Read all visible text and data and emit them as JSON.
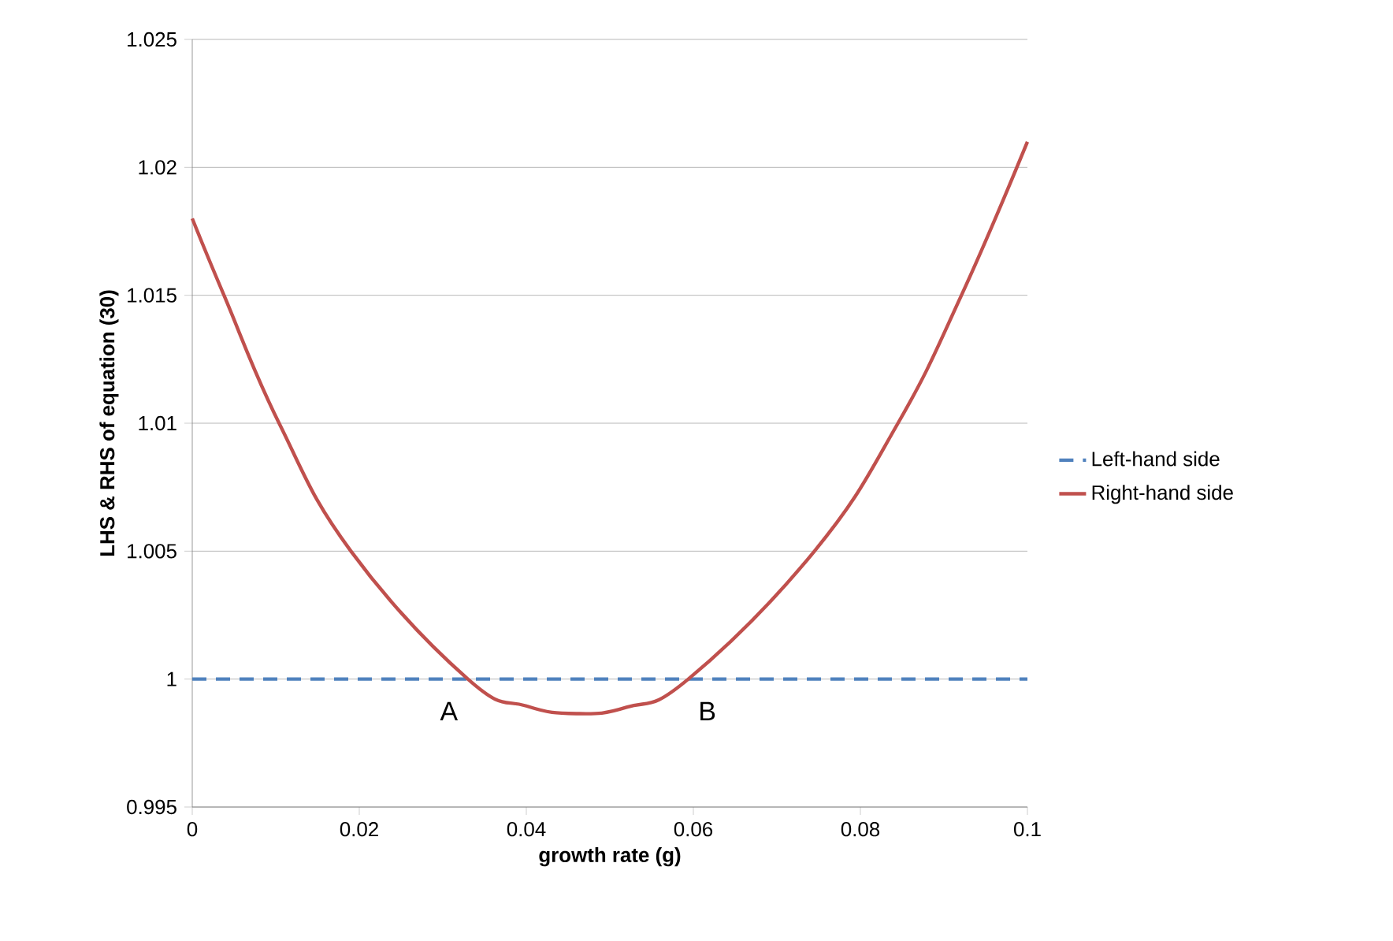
{
  "chart_data": {
    "type": "line",
    "xlabel": "growth rate (g)",
    "ylabel": "LHS & RHS of equation (30)",
    "xlim": [
      0,
      0.1
    ],
    "ylim": [
      0.995,
      1.025
    ],
    "xticks": [
      0,
      0.02,
      0.04,
      0.06,
      0.08,
      0.1
    ],
    "yticks": [
      0.995,
      1,
      1.005,
      1.01,
      1.015,
      1.02,
      1.025
    ],
    "grid": "y",
    "legend": "right",
    "marker": "none",
    "series": [
      {
        "name": "Left-hand side",
        "color": "#4f81bd",
        "line_style": "dashed",
        "x": [
          0,
          0.1
        ],
        "values": [
          1,
          1
        ]
      },
      {
        "name": "Right-hand side",
        "color": "#c0504d",
        "line_style": "solid",
        "x": [
          0,
          0.0038,
          0.0104,
          0.019,
          0.033,
          0.04,
          0.046,
          0.052,
          0.0594,
          0.0745,
          0.0845,
          0.0921,
          0.1
        ],
        "values": [
          1.018,
          1.015,
          1.01,
          1.005,
          1,
          0.99895,
          0.99865,
          0.9989,
          1,
          1.005,
          1.01,
          1.015,
          1.021
        ]
      }
    ],
    "annotations": [
      "A",
      "B"
    ]
  }
}
